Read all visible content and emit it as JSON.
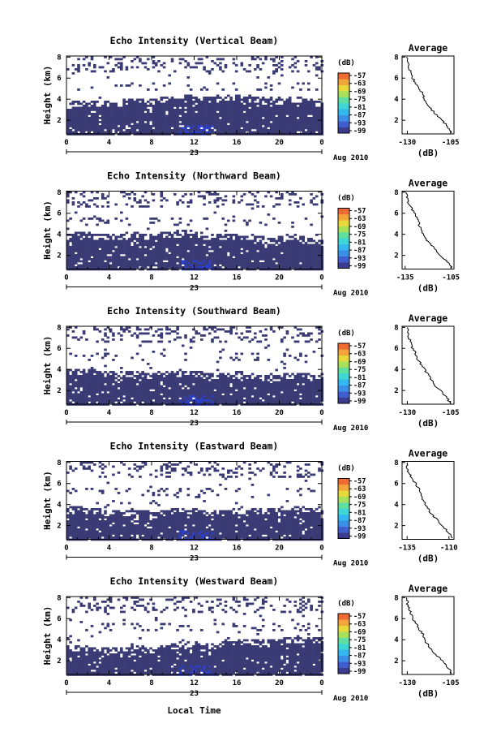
{
  "figure": {
    "xlabel": "Local Time",
    "date_label": "Aug 2010",
    "day_label": "23"
  },
  "colors": {
    "echo_fill": "#3a3a75",
    "strong_echo": "#2b3fc9",
    "colorbar": [
      "#3b3b8f",
      "#3f5fd1",
      "#3c8fe6",
      "#35b8f0",
      "#3fd6d6",
      "#5fe0a0",
      "#a8e05a",
      "#e8d93b",
      "#f2a53a",
      "#f06a33"
    ]
  },
  "chart_data": [
    {
      "type": "heatmap",
      "title": "Echo Intensity (Vertical Beam)",
      "ylabel": "Height (km)",
      "x_ticks": [
        "0",
        "4",
        "8",
        "12",
        "16",
        "20",
        "0"
      ],
      "y_ticks": [
        "2",
        "4",
        "6",
        "8"
      ],
      "xlim": [
        0,
        24
      ],
      "ylim": [
        0.7,
        8.1
      ],
      "colorbar": {
        "unit": "(dB)",
        "ticks": [
          "-57",
          "-63",
          "-69",
          "-75",
          "-81",
          "-87",
          "-93",
          "-99"
        ]
      },
      "profile": {
        "title": "Average",
        "xlabel": "(dB)",
        "x_ticks": [
          "-130",
          "-105"
        ],
        "xlim": [
          -133,
          -103
        ],
        "heights": [
          0.8,
          1.5,
          2.0,
          2.5,
          3.0,
          3.5,
          4.0,
          4.5,
          5.0,
          5.5,
          6.0,
          6.5,
          7.0,
          7.5,
          8.0
        ],
        "values": [
          -104,
          -107,
          -110,
          -113,
          -116,
          -118,
          -120,
          -121,
          -123,
          -125,
          -127,
          -128,
          -129,
          -130,
          -130
        ]
      }
    },
    {
      "type": "heatmap",
      "title": "Echo Intensity (Northward Beam)",
      "ylabel": "Height (km)",
      "x_ticks": [
        "0",
        "4",
        "8",
        "12",
        "16",
        "20",
        "0"
      ],
      "y_ticks": [
        "2",
        "4",
        "6",
        "8"
      ],
      "xlim": [
        0,
        24
      ],
      "ylim": [
        0.7,
        8.1
      ],
      "colorbar": {
        "unit": "(dB)",
        "ticks": [
          "-57",
          "-63",
          "-69",
          "-75",
          "-81",
          "-87",
          "-93",
          "-99"
        ]
      },
      "profile": {
        "title": "Average",
        "xlabel": "(dB)",
        "x_ticks": [
          "-135",
          "-105"
        ],
        "xlim": [
          -137,
          -103
        ],
        "heights": [
          0.8,
          1.5,
          2.0,
          2.5,
          3.0,
          3.5,
          4.0,
          4.5,
          5.0,
          5.5,
          6.0,
          6.5,
          7.0,
          7.5,
          8.0
        ],
        "values": [
          -104,
          -108,
          -112,
          -115,
          -118,
          -121,
          -123,
          -125,
          -126,
          -127,
          -129,
          -131,
          -133,
          -134,
          -134
        ]
      }
    },
    {
      "type": "heatmap",
      "title": "Echo Intensity (Southward Beam)",
      "ylabel": "Height (km)",
      "x_ticks": [
        "0",
        "4",
        "8",
        "12",
        "16",
        "20",
        "0"
      ],
      "y_ticks": [
        "2",
        "4",
        "6",
        "8"
      ],
      "xlim": [
        0,
        24
      ],
      "ylim": [
        0.7,
        8.1
      ],
      "colorbar": {
        "unit": "(dB)",
        "ticks": [
          "-57",
          "-63",
          "-69",
          "-75",
          "-81",
          "-87",
          "-93",
          "-99"
        ]
      },
      "profile": {
        "title": "Average",
        "xlabel": "(dB)",
        "x_ticks": [
          "-130",
          "-105"
        ],
        "xlim": [
          -133,
          -103
        ],
        "heights": [
          0.8,
          1.5,
          2.0,
          2.5,
          3.0,
          3.5,
          4.0,
          4.5,
          5.0,
          5.5,
          6.0,
          6.5,
          7.0,
          7.5,
          8.0
        ],
        "values": [
          -105,
          -108,
          -111,
          -114,
          -116,
          -118,
          -120,
          -122,
          -124,
          -125,
          -127,
          -128,
          -129,
          -130,
          -130
        ]
      }
    },
    {
      "type": "heatmap",
      "title": "Echo Intensity (Eastward Beam)",
      "ylabel": "Height (km)",
      "x_ticks": [
        "0",
        "4",
        "8",
        "12",
        "16",
        "20",
        "0"
      ],
      "y_ticks": [
        "2",
        "4",
        "6",
        "8"
      ],
      "xlim": [
        0,
        24
      ],
      "ylim": [
        0.7,
        8.1
      ],
      "colorbar": {
        "unit": "(dB)",
        "ticks": [
          "-57",
          "-63",
          "-69",
          "-75",
          "-81",
          "-87",
          "-93",
          "-99"
        ]
      },
      "profile": {
        "title": "Average",
        "xlabel": "(dB)",
        "x_ticks": [
          "-135",
          "-110"
        ],
        "xlim": [
          -138,
          -107
        ],
        "heights": [
          0.8,
          1.5,
          2.0,
          2.5,
          3.0,
          3.5,
          4.0,
          4.5,
          5.0,
          5.5,
          6.0,
          6.5,
          7.0,
          7.5,
          8.0
        ],
        "values": [
          -108,
          -111,
          -114,
          -117,
          -120,
          -122,
          -124,
          -126,
          -127,
          -128,
          -130,
          -132,
          -134,
          -135,
          -135
        ]
      }
    },
    {
      "type": "heatmap",
      "title": "Echo Intensity (Westward Beam)",
      "ylabel": "Height (km)",
      "x_ticks": [
        "0",
        "4",
        "8",
        "12",
        "16",
        "20",
        "0"
      ],
      "y_ticks": [
        "2",
        "4",
        "6",
        "8"
      ],
      "xlim": [
        0,
        24
      ],
      "ylim": [
        0.7,
        8.1
      ],
      "colorbar": {
        "unit": "(dB)",
        "ticks": [
          "-57",
          "-63",
          "-69",
          "-75",
          "-81",
          "-87",
          "-93",
          "-99"
        ]
      },
      "profile": {
        "title": "Average",
        "xlabel": "(dB)",
        "x_ticks": [
          "-130",
          "-105"
        ],
        "xlim": [
          -133,
          -103
        ],
        "heights": [
          0.8,
          1.5,
          2.0,
          2.5,
          3.0,
          3.5,
          4.0,
          4.5,
          5.0,
          5.5,
          6.0,
          6.5,
          7.0,
          7.5,
          8.0
        ],
        "values": [
          -104,
          -107,
          -110,
          -113,
          -116,
          -118,
          -120,
          -121,
          -123,
          -125,
          -127,
          -128,
          -129,
          -130,
          -130
        ]
      }
    }
  ]
}
